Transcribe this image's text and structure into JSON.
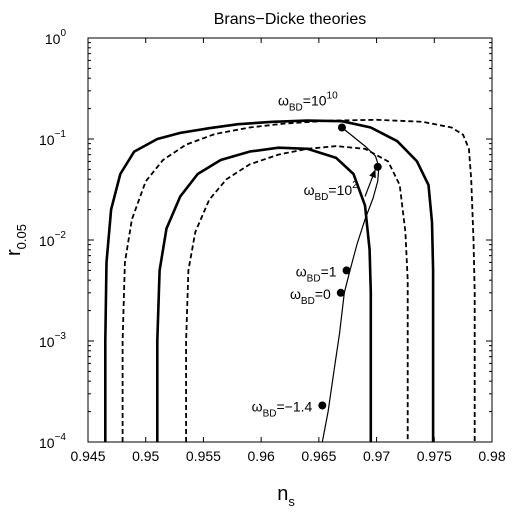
{
  "chart_data": {
    "type": "line",
    "title": "Brans−Dicke theories",
    "xlabel": {
      "base": "n",
      "sub": "s"
    },
    "ylabel": {
      "base": "r",
      "sub": "0.05"
    },
    "xlim": [
      0.945,
      0.98
    ],
    "ylim": [
      0.0001,
      1
    ],
    "yscale": "log",
    "grid": false,
    "x_ticks": [
      {
        "value": 0.945,
        "label": "0.945"
      },
      {
        "value": 0.95,
        "label": "0.95"
      },
      {
        "value": 0.955,
        "label": "0.955"
      },
      {
        "value": 0.96,
        "label": "0.96"
      },
      {
        "value": 0.965,
        "label": "0.965"
      },
      {
        "value": 0.97,
        "label": "0.97"
      },
      {
        "value": 0.975,
        "label": "0.975"
      },
      {
        "value": 0.98,
        "label": "0.98"
      }
    ],
    "y_ticks": [
      {
        "value": 0.0001,
        "base": "10",
        "exp": "−4"
      },
      {
        "value": 0.001,
        "base": "10",
        "exp": "−3"
      },
      {
        "value": 0.01,
        "base": "10",
        "exp": "−2"
      },
      {
        "value": 0.1,
        "base": "10",
        "exp": "−1"
      },
      {
        "value": 1,
        "base": "10",
        "exp": "0"
      }
    ],
    "series": [
      {
        "style": "solid-thick",
        "x": [
          0.9465,
          0.9465,
          0.9466,
          0.947,
          0.9478,
          0.949,
          0.951,
          0.953,
          0.9555,
          0.958,
          0.961,
          0.964,
          0.967,
          0.9695,
          0.9718,
          0.9735,
          0.9745,
          0.9748,
          0.9749,
          0.9749
        ],
        "y": [
          0.0001,
          0.001,
          0.006,
          0.02,
          0.045,
          0.075,
          0.1,
          0.115,
          0.128,
          0.14,
          0.148,
          0.152,
          0.15,
          0.13,
          0.095,
          0.06,
          0.035,
          0.015,
          0.005,
          0.0001
        ]
      },
      {
        "style": "solid-thick",
        "x": [
          0.951,
          0.951,
          0.9512,
          0.9518,
          0.953,
          0.9545,
          0.9565,
          0.959,
          0.9615,
          0.964,
          0.9665,
          0.968,
          0.969,
          0.9694,
          0.9695,
          0.9695
        ],
        "y": [
          0.0001,
          0.001,
          0.005,
          0.013,
          0.027,
          0.045,
          0.062,
          0.075,
          0.082,
          0.08,
          0.065,
          0.045,
          0.022,
          0.008,
          0.003,
          0.0001
        ]
      },
      {
        "style": "dashed",
        "x": [
          0.948,
          0.948,
          0.9482,
          0.9488,
          0.95,
          0.9515,
          0.9535,
          0.956,
          0.959,
          0.962,
          0.966,
          0.97,
          0.974,
          0.9765,
          0.9775,
          0.978,
          0.9782,
          0.9784,
          0.9785,
          0.9785
        ],
        "y": [
          0.0001,
          0.001,
          0.006,
          0.016,
          0.038,
          0.062,
          0.088,
          0.112,
          0.13,
          0.142,
          0.152,
          0.155,
          0.148,
          0.13,
          0.11,
          0.08,
          0.04,
          0.01,
          0.003,
          0.0001
        ]
      },
      {
        "style": "dashed",
        "x": [
          0.9535,
          0.9535,
          0.9537,
          0.9543,
          0.9555,
          0.957,
          0.959,
          0.9615,
          0.964,
          0.9665,
          0.969,
          0.971,
          0.972,
          0.9725,
          0.9727,
          0.9727
        ],
        "y": [
          0.0001,
          0.001,
          0.005,
          0.012,
          0.025,
          0.04,
          0.056,
          0.07,
          0.08,
          0.085,
          0.08,
          0.06,
          0.035,
          0.012,
          0.004,
          0.0001
        ]
      },
      {
        "style": "solid-thin",
        "x": [
          0.9653,
          0.9658,
          0.9663,
          0.9668,
          0.9672,
          0.9677,
          0.9683,
          0.969,
          0.9697,
          0.9701,
          0.9702,
          0.9699,
          0.969,
          0.968,
          0.967
        ],
        "y": [
          0.0001,
          0.0002,
          0.0005,
          0.0012,
          0.003,
          0.005,
          0.009,
          0.016,
          0.026,
          0.038,
          0.053,
          0.068,
          0.085,
          0.105,
          0.13
        ]
      }
    ],
    "points": [
      {
        "x": 0.967,
        "y": 0.13,
        "label": {
          "base": "ω",
          "sub": "BD",
          "text": "=10",
          "sup": "10"
        }
      },
      {
        "x": 0.9701,
        "y": 0.053,
        "label": {
          "base": "ω",
          "sub": "BD",
          "text": "=10",
          "sup": "2"
        }
      },
      {
        "x": 0.9674,
        "y": 0.005,
        "label": {
          "base": "ω",
          "sub": "BD",
          "text": "=1",
          "sup": ""
        }
      },
      {
        "x": 0.9669,
        "y": 0.003,
        "label": {
          "base": "ω",
          "sub": "BD",
          "text": "=0",
          "sup": ""
        }
      },
      {
        "x": 0.9653,
        "y": 0.00023,
        "label": {
          "base": "ω",
          "sub": "BD",
          "text": "=−1.4",
          "sup": ""
        }
      }
    ],
    "arrows": [
      {
        "from": {
          "x": 0.969,
          "y": 0.027
        },
        "to": {
          "x": 0.9699,
          "y": 0.05
        }
      }
    ]
  }
}
